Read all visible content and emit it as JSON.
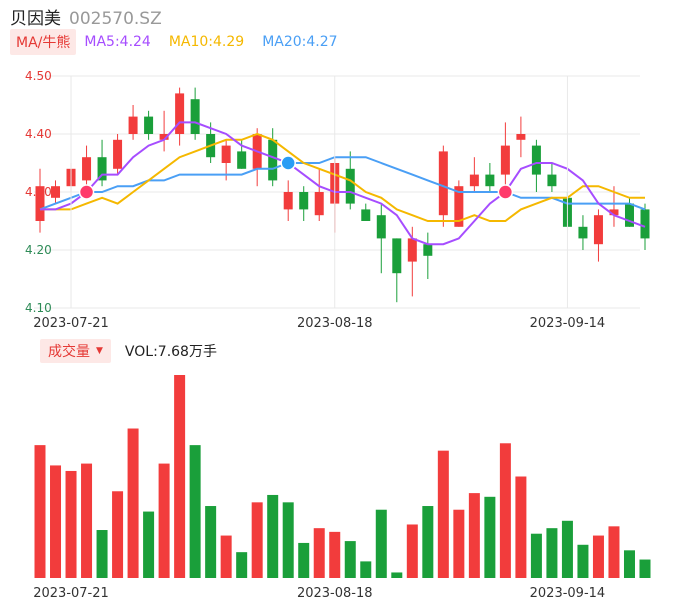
{
  "header": {
    "name": "贝因美",
    "code": "002570.SZ"
  },
  "ma_legend": {
    "button_label": "MA/牛熊",
    "items": [
      {
        "label": "MA5:4.24",
        "color": "#a64dff"
      },
      {
        "label": "MA10:4.29",
        "color": "#f5b800"
      },
      {
        "label": "MA20:4.27",
        "color": "#4a9ff5"
      }
    ]
  },
  "volume_legend": {
    "button_label": "成交量",
    "value_label": "VOL:7.68万手"
  },
  "colors": {
    "up": "#f23c3c",
    "down": "#1a9f3a",
    "grid": "#e8e8e8"
  },
  "chart_data": {
    "type": "candlestick",
    "ylim": [
      4.1,
      4.5
    ],
    "y_ticks": [
      "4.50",
      "4.40",
      "4.30",
      "4.20",
      "4.10"
    ],
    "x_tick_labels": [
      {
        "index": 2,
        "label": "2023-07-21"
      },
      {
        "index": 19,
        "label": "2023-08-18"
      },
      {
        "index": 34,
        "label": "2023-09-14"
      }
    ],
    "candles": [
      {
        "o": 4.25,
        "h": 4.34,
        "l": 4.23,
        "c": 4.31
      },
      {
        "o": 4.29,
        "h": 4.32,
        "l": 4.28,
        "c": 4.31
      },
      {
        "o": 4.31,
        "h": 4.35,
        "l": 4.3,
        "c": 4.34
      },
      {
        "o": 4.32,
        "h": 4.38,
        "l": 4.31,
        "c": 4.36
      },
      {
        "o": 4.36,
        "h": 4.39,
        "l": 4.31,
        "c": 4.32
      },
      {
        "o": 4.34,
        "h": 4.4,
        "l": 4.33,
        "c": 4.39
      },
      {
        "o": 4.4,
        "h": 4.45,
        "l": 4.39,
        "c": 4.43
      },
      {
        "o": 4.43,
        "h": 4.44,
        "l": 4.39,
        "c": 4.4
      },
      {
        "o": 4.39,
        "h": 4.44,
        "l": 4.37,
        "c": 4.4
      },
      {
        "o": 4.4,
        "h": 4.48,
        "l": 4.38,
        "c": 4.47
      },
      {
        "o": 4.46,
        "h": 4.48,
        "l": 4.39,
        "c": 4.4
      },
      {
        "o": 4.4,
        "h": 4.42,
        "l": 4.35,
        "c": 4.36
      },
      {
        "o": 4.35,
        "h": 4.39,
        "l": 4.32,
        "c": 4.38
      },
      {
        "o": 4.37,
        "h": 4.39,
        "l": 4.34,
        "c": 4.34
      },
      {
        "o": 4.34,
        "h": 4.41,
        "l": 4.31,
        "c": 4.4
      },
      {
        "o": 4.39,
        "h": 4.41,
        "l": 4.31,
        "c": 4.32
      },
      {
        "o": 4.27,
        "h": 4.32,
        "l": 4.25,
        "c": 4.3
      },
      {
        "o": 4.3,
        "h": 4.31,
        "l": 4.25,
        "c": 4.27
      },
      {
        "o": 4.26,
        "h": 4.34,
        "l": 4.25,
        "c": 4.3
      },
      {
        "o": 4.28,
        "h": 4.36,
        "l": 4.23,
        "c": 4.35
      },
      {
        "o": 4.34,
        "h": 4.37,
        "l": 4.27,
        "c": 4.28
      },
      {
        "o": 4.27,
        "h": 4.28,
        "l": 4.25,
        "c": 4.25
      },
      {
        "o": 4.26,
        "h": 4.28,
        "l": 4.16,
        "c": 4.22
      },
      {
        "o": 4.22,
        "h": 4.22,
        "l": 4.11,
        "c": 4.16
      },
      {
        "o": 4.18,
        "h": 4.24,
        "l": 4.12,
        "c": 4.22
      },
      {
        "o": 4.21,
        "h": 4.23,
        "l": 4.15,
        "c": 4.19
      },
      {
        "o": 4.26,
        "h": 4.38,
        "l": 4.24,
        "c": 4.37
      },
      {
        "o": 4.24,
        "h": 4.32,
        "l": 4.24,
        "c": 4.31
      },
      {
        "o": 4.31,
        "h": 4.36,
        "l": 4.3,
        "c": 4.33
      },
      {
        "o": 4.33,
        "h": 4.35,
        "l": 4.3,
        "c": 4.31
      },
      {
        "o": 4.33,
        "h": 4.42,
        "l": 4.3,
        "c": 4.38
      },
      {
        "o": 4.39,
        "h": 4.43,
        "l": 4.36,
        "c": 4.4
      },
      {
        "o": 4.38,
        "h": 4.39,
        "l": 4.3,
        "c": 4.33
      },
      {
        "o": 4.33,
        "h": 4.35,
        "l": 4.3,
        "c": 4.31
      },
      {
        "o": 4.29,
        "h": 4.3,
        "l": 4.24,
        "c": 4.24
      },
      {
        "o": 4.24,
        "h": 4.26,
        "l": 4.2,
        "c": 4.22
      },
      {
        "o": 4.21,
        "h": 4.27,
        "l": 4.18,
        "c": 4.26
      },
      {
        "o": 4.26,
        "h": 4.31,
        "l": 4.24,
        "c": 4.27
      },
      {
        "o": 4.28,
        "h": 4.29,
        "l": 4.24,
        "c": 4.24
      },
      {
        "o": 4.27,
        "h": 4.28,
        "l": 4.2,
        "c": 4.22
      }
    ],
    "volume": [
      {
        "v": 72,
        "up": true
      },
      {
        "v": 61,
        "up": true
      },
      {
        "v": 58,
        "up": true
      },
      {
        "v": 62,
        "up": true
      },
      {
        "v": 26,
        "up": false
      },
      {
        "v": 47,
        "up": true
      },
      {
        "v": 81,
        "up": true
      },
      {
        "v": 36,
        "up": false
      },
      {
        "v": 62,
        "up": true
      },
      {
        "v": 110,
        "up": true
      },
      {
        "v": 72,
        "up": false
      },
      {
        "v": 39,
        "up": false
      },
      {
        "v": 23,
        "up": true
      },
      {
        "v": 14,
        "up": false
      },
      {
        "v": 41,
        "up": true
      },
      {
        "v": 45,
        "up": false
      },
      {
        "v": 41,
        "up": false
      },
      {
        "v": 19,
        "up": false
      },
      {
        "v": 27,
        "up": true
      },
      {
        "v": 25,
        "up": true
      },
      {
        "v": 20,
        "up": false
      },
      {
        "v": 9,
        "up": false
      },
      {
        "v": 37,
        "up": false
      },
      {
        "v": 3,
        "up": false
      },
      {
        "v": 29,
        "up": true
      },
      {
        "v": 39,
        "up": false
      },
      {
        "v": 69,
        "up": true
      },
      {
        "v": 37,
        "up": true
      },
      {
        "v": 46,
        "up": true
      },
      {
        "v": 44,
        "up": false
      },
      {
        "v": 73,
        "up": true
      },
      {
        "v": 55,
        "up": true
      },
      {
        "v": 24,
        "up": false
      },
      {
        "v": 27,
        "up": false
      },
      {
        "v": 31,
        "up": false
      },
      {
        "v": 18,
        "up": false
      },
      {
        "v": 23,
        "up": true
      },
      {
        "v": 28,
        "up": true
      },
      {
        "v": 15,
        "up": false
      },
      {
        "v": 10,
        "up": false
      }
    ],
    "ma5": [
      4.27,
      4.27,
      4.28,
      4.3,
      4.33,
      4.33,
      4.36,
      4.38,
      4.39,
      4.42,
      4.42,
      4.41,
      4.4,
      4.38,
      4.37,
      4.36,
      4.35,
      4.33,
      4.31,
      4.3,
      4.3,
      4.29,
      4.28,
      4.26,
      4.22,
      4.21,
      4.21,
      4.22,
      4.25,
      4.28,
      4.3,
      4.34,
      4.35,
      4.35,
      4.34,
      4.32,
      4.28,
      4.26,
      4.25,
      4.24
    ],
    "ma10": [
      4.27,
      4.27,
      4.27,
      4.28,
      4.29,
      4.28,
      4.3,
      4.32,
      4.34,
      4.36,
      4.37,
      4.38,
      4.39,
      4.39,
      4.4,
      4.39,
      4.37,
      4.35,
      4.34,
      4.33,
      4.32,
      4.3,
      4.29,
      4.27,
      4.26,
      4.25,
      4.25,
      4.25,
      4.26,
      4.25,
      4.25,
      4.27,
      4.28,
      4.29,
      4.29,
      4.31,
      4.31,
      4.3,
      4.29,
      4.29
    ],
    "ma20": [
      4.27,
      4.28,
      4.29,
      4.3,
      4.3,
      4.31,
      4.31,
      4.32,
      4.32,
      4.33,
      4.33,
      4.33,
      4.33,
      4.33,
      4.34,
      4.34,
      4.35,
      4.35,
      4.35,
      4.36,
      4.36,
      4.36,
      4.35,
      4.34,
      4.33,
      4.32,
      4.31,
      4.3,
      4.3,
      4.3,
      4.3,
      4.29,
      4.29,
      4.29,
      4.28,
      4.28,
      4.28,
      4.28,
      4.28,
      4.27
    ],
    "markers": [
      {
        "index": 3,
        "kind": "bull",
        "color": "#ff3b6b"
      },
      {
        "index": 16,
        "kind": "bear",
        "color": "#2a9df4"
      },
      {
        "index": 30,
        "kind": "bull",
        "color": "#ff3b6b"
      }
    ]
  }
}
